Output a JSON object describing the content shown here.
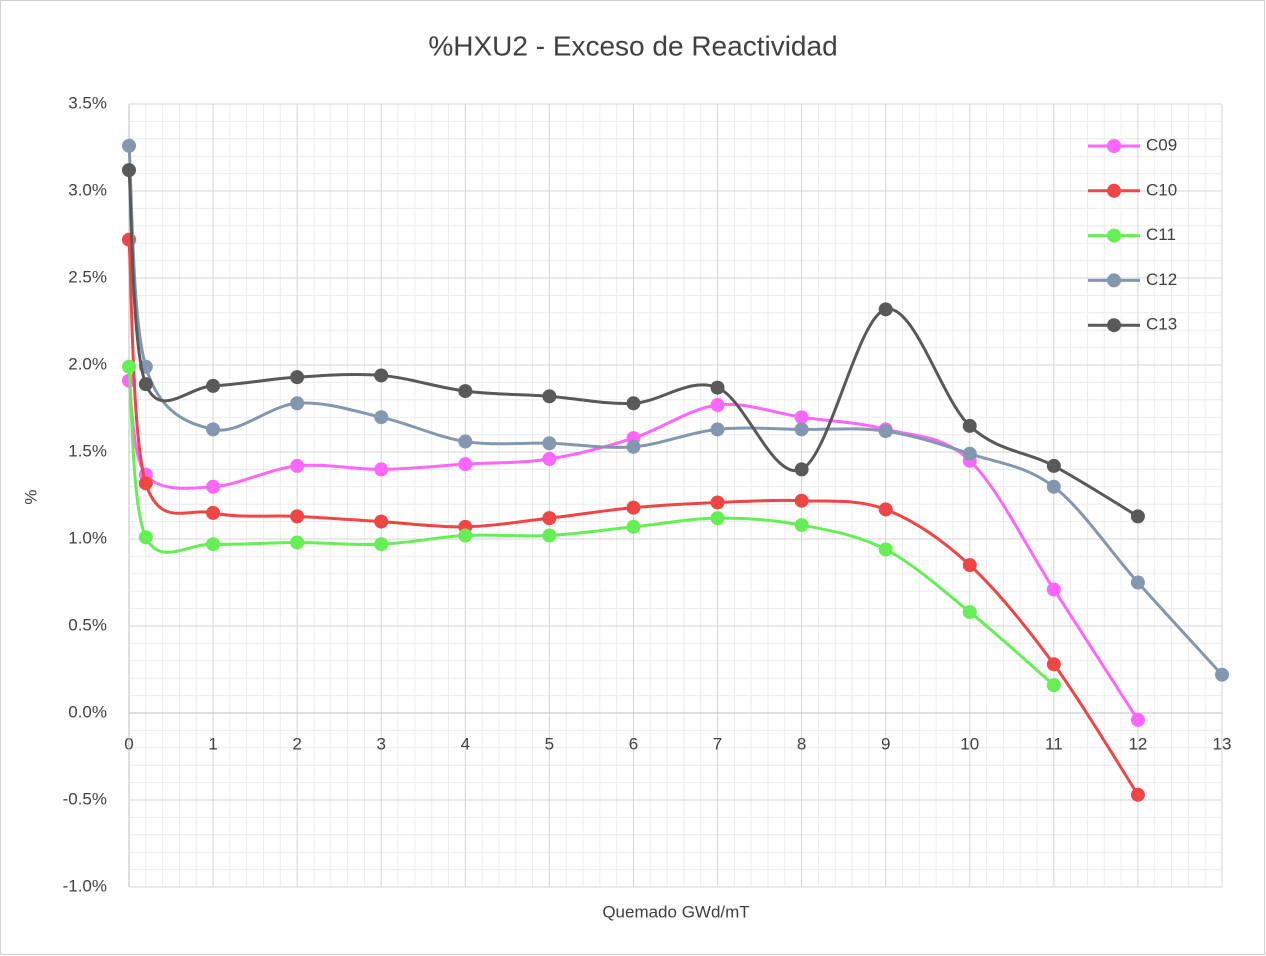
{
  "chart_data": {
    "type": "line",
    "title": "%HXU2 - Exceso de Reactividad",
    "xlabel": "Quemado GWd/mT",
    "ylabel": "%",
    "x": [
      0,
      0.2,
      1,
      2,
      3,
      4,
      5,
      6,
      7,
      8,
      9,
      10,
      11,
      12,
      13
    ],
    "series": [
      {
        "name": "C09",
        "color": "#ff66ff",
        "values": [
          1.91,
          1.37,
          1.3,
          1.42,
          1.4,
          1.43,
          1.46,
          1.58,
          1.77,
          1.7,
          1.63,
          1.45,
          0.71,
          -0.04,
          null
        ]
      },
      {
        "name": "C10",
        "color": "#f04545",
        "values": [
          2.72,
          1.32,
          1.15,
          1.13,
          1.1,
          1.07,
          1.12,
          1.18,
          1.21,
          1.22,
          1.17,
          0.85,
          0.28,
          -0.47,
          null
        ]
      },
      {
        "name": "C11",
        "color": "#66ee55",
        "values": [
          1.99,
          1.01,
          0.97,
          0.98,
          0.97,
          1.02,
          1.02,
          1.07,
          1.12,
          1.08,
          0.94,
          0.58,
          0.16,
          null,
          null
        ]
      },
      {
        "name": "C12",
        "color": "#8497b0",
        "values": [
          3.26,
          1.99,
          1.63,
          1.78,
          1.7,
          1.56,
          1.55,
          1.53,
          1.63,
          1.63,
          1.62,
          1.49,
          1.3,
          0.75,
          0.22
        ]
      },
      {
        "name": "C13",
        "color": "#595959",
        "values": [
          3.12,
          1.89,
          1.88,
          1.93,
          1.94,
          1.85,
          1.82,
          1.78,
          1.87,
          1.4,
          2.32,
          1.65,
          1.42,
          1.13,
          null
        ]
      }
    ],
    "xlim": [
      0,
      13
    ],
    "xticks": [
      0,
      1,
      2,
      3,
      4,
      5,
      6,
      7,
      8,
      9,
      10,
      11,
      12,
      13
    ],
    "ylim": [
      -1.0,
      3.5
    ],
    "yticks": [
      {
        "value": -1.0,
        "label": "-1.0%"
      },
      {
        "value": -0.5,
        "label": "-0.5%"
      },
      {
        "value": 0,
        "label": "0.0%"
      },
      {
        "value": 0.5,
        "label": "0.5%"
      },
      {
        "value": 1.0,
        "label": "1.0%"
      },
      {
        "value": 1.5,
        "label": "1.5%"
      },
      {
        "value": 2.0,
        "label": "2.0%"
      },
      {
        "value": 2.5,
        "label": "2.5%"
      },
      {
        "value": 3.0,
        "label": "3.0%"
      },
      {
        "value": 3.5,
        "label": "3.5%"
      }
    ],
    "grid": true,
    "minor_grid": true,
    "smooth": true,
    "legend": "right"
  }
}
